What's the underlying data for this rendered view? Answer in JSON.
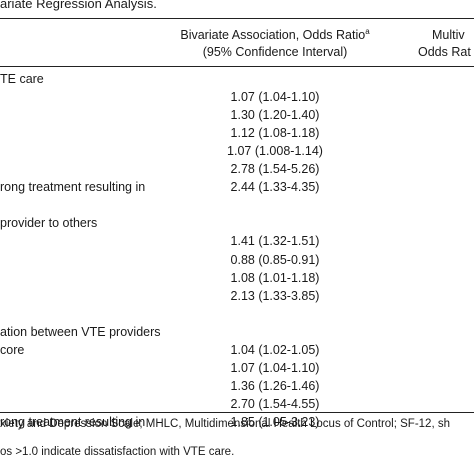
{
  "table": {
    "caption": "ariate Regression Analysis.",
    "header": {
      "col2_line1": "Bivariate Association, Odds Ratio",
      "col2_sup": "a",
      "col2_line2": "(95% Confidence Interval)",
      "col3_line1": "Multiv",
      "col3_line2": "Odds Rat"
    },
    "rows": [
      {
        "label": "TE care",
        "value": ""
      },
      {
        "label": "",
        "value": "1.07 (1.04-1.10)"
      },
      {
        "label": "",
        "value": "1.30 (1.20-1.40)"
      },
      {
        "label": "",
        "value": "1.12 (1.08-1.18)"
      },
      {
        "label": "",
        "value": "1.07 (1.008-1.14)"
      },
      {
        "label": "",
        "value": "2.78 (1.54-5.26)"
      },
      {
        "label": "rong treatment resulting in",
        "value": "2.44 (1.33-4.35)"
      },
      {
        "label": "",
        "value": ""
      },
      {
        "label": " provider to others",
        "value": ""
      },
      {
        "label": "",
        "value": "1.41 (1.32-1.51)"
      },
      {
        "label": "",
        "value": "0.88 (0.85-0.91)"
      },
      {
        "label": "",
        "value": "1.08 (1.01-1.18)"
      },
      {
        "label": "",
        "value": "2.13 (1.33-3.85)"
      },
      {
        "label": "",
        "value": ""
      },
      {
        "label": "ation between VTE providers",
        "value": ""
      },
      {
        "label": "core",
        "value": "1.04 (1.02-1.05)"
      },
      {
        "label": "",
        "value": "1.07 (1.04-1.10)"
      },
      {
        "label": "",
        "value": "1.36 (1.26-1.46)"
      },
      {
        "label": "",
        "value": "2.70 (1.54-4.55)"
      },
      {
        "label": "rong treatment resulting in",
        "value": "1.85 (1.05-3.23)"
      }
    ],
    "footnote_1": "xiety and Depression Scale; MHLC, Multidimensional Health Locus of Control; SF-12, sh",
    "footnote_2": "os >1.0 indicate dissatisfaction with VTE care."
  }
}
